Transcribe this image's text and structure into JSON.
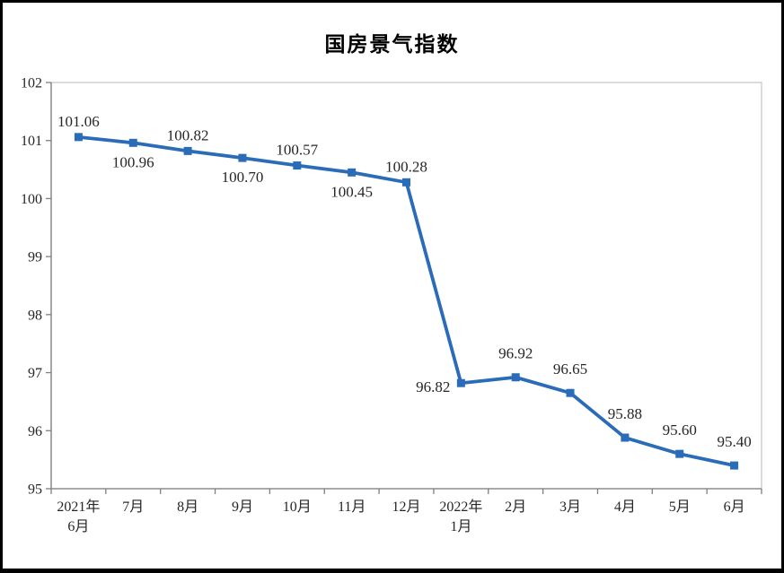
{
  "page": {
    "background": "#ffffff",
    "frame_color": "#000000"
  },
  "chart_data": {
    "type": "line",
    "title": "国房景气指数",
    "categories": [
      [
        "2021年",
        "6月"
      ],
      [
        "7月"
      ],
      [
        "8月"
      ],
      [
        "9月"
      ],
      [
        "10月"
      ],
      [
        "11月"
      ],
      [
        "12月"
      ],
      [
        "2022年",
        "1月"
      ],
      [
        "2月"
      ],
      [
        "3月"
      ],
      [
        "4月"
      ],
      [
        "5月"
      ],
      [
        "6月"
      ]
    ],
    "values": [
      101.06,
      100.96,
      100.82,
      100.7,
      100.57,
      100.45,
      100.28,
      96.82,
      96.92,
      96.65,
      95.88,
      95.6,
      95.4
    ],
    "point_labels": [
      "101.06",
      "100.96",
      "100.82",
      "100.70",
      "100.57",
      "100.45",
      "100.28",
      "96.82",
      "96.92",
      "96.65",
      "95.88",
      "95.60",
      "95.40"
    ],
    "label_placement": [
      "above",
      "below",
      "above",
      "below",
      "above",
      "below",
      "above",
      "left",
      "above2",
      "above2",
      "above2",
      "above2",
      "above2"
    ],
    "ylim": [
      95,
      102
    ],
    "yticks": [
      95,
      96,
      97,
      98,
      99,
      100,
      101,
      102
    ],
    "xlabel": "",
    "ylabel": "",
    "grid": false,
    "legend": "none",
    "marker": "square",
    "colors": {
      "line": "#2B6CB8",
      "text": "#262626",
      "title": "#000000",
      "axis": "#7f7f7f",
      "plot_border": "#c8c8c8"
    }
  }
}
